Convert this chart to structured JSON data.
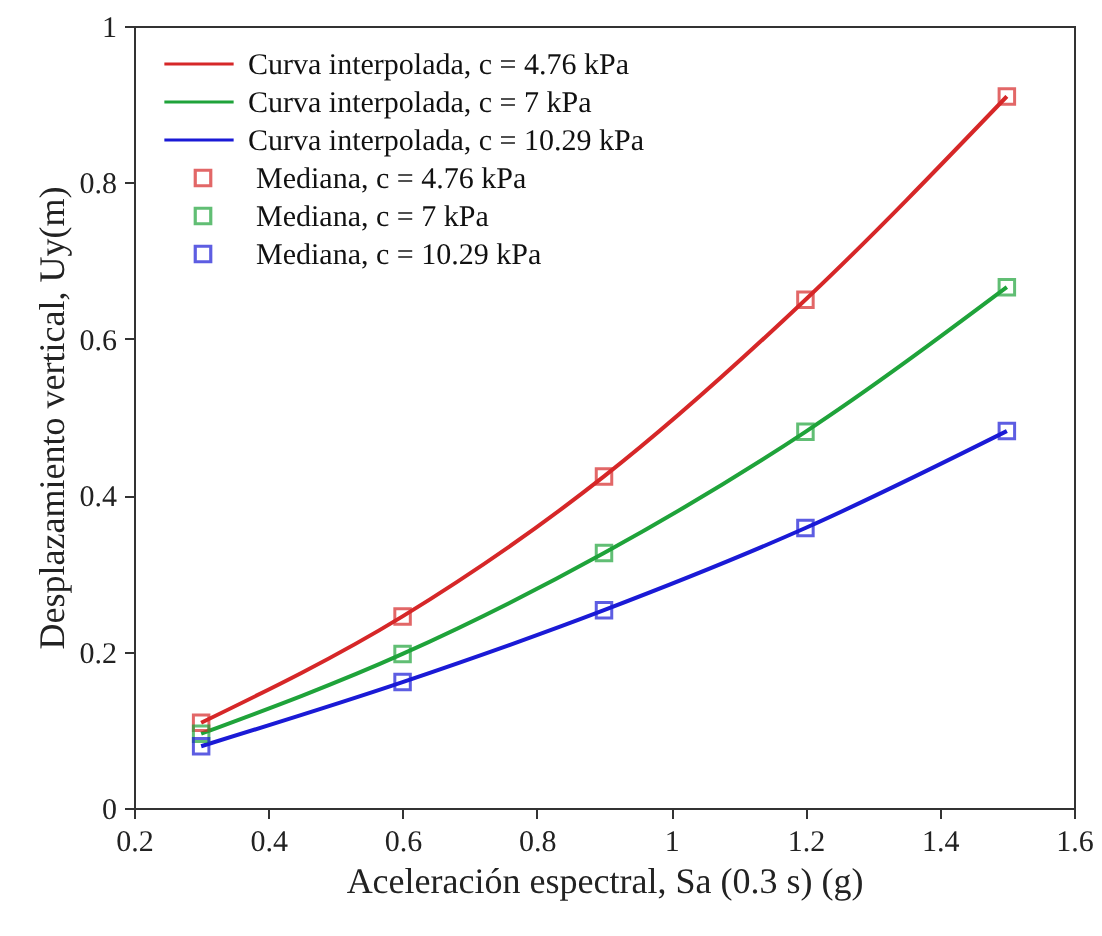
{
  "chart_data": {
    "type": "line",
    "xlabel": "Aceleración espectral, Sa (0.3 s) (g)",
    "ylabel": "Desplazamiento vertical, Uy(m)",
    "xlim": [
      0.2,
      1.6
    ],
    "xticks": [
      0.2,
      0.4,
      0.6,
      0.8,
      1,
      1.2,
      1.4,
      1.6
    ],
    "ylim": [
      0,
      1
    ],
    "yticks": [
      0,
      0.2,
      0.4,
      0.6,
      0.8,
      1
    ],
    "grid": false,
    "legend": "top left",
    "series": [
      {
        "name": "Curva interpolada, c = 4.76 kPa",
        "color": "#d62728",
        "x": [
          0.3,
          0.6,
          0.9,
          1.2,
          1.5
        ],
        "values": [
          0.109,
          0.245,
          0.424,
          0.65,
          0.91
        ]
      },
      {
        "name": "Curva interpolada, c = 7 kPa",
        "color": "#1fa33a",
        "x": [
          0.3,
          0.6,
          0.9,
          1.2,
          1.5
        ],
        "values": [
          0.095,
          0.197,
          0.326,
          0.481,
          0.666
        ]
      },
      {
        "name": "Curva interpolada, c = 10.29 kPa",
        "color": "#1a1ad6",
        "x": [
          0.3,
          0.6,
          0.9,
          1.2,
          1.5
        ],
        "values": [
          0.079,
          0.161,
          0.253,
          0.358,
          0.482
        ]
      },
      {
        "name": "Mediana, c = 4.76 kPa",
        "type": "scatter",
        "marker": "square",
        "color": "#d62728",
        "x": [
          0.3,
          0.6,
          0.9,
          1.2,
          1.5
        ],
        "values": [
          0.109,
          0.245,
          0.424,
          0.65,
          0.91
        ]
      },
      {
        "name": "Mediana, c = 7 kPa",
        "type": "scatter",
        "marker": "square",
        "color": "#1fa33a",
        "x": [
          0.3,
          0.6,
          0.9,
          1.2,
          1.5
        ],
        "values": [
          0.095,
          0.197,
          0.326,
          0.481,
          0.666
        ]
      },
      {
        "name": "Mediana, c = 10.29 kPa",
        "type": "scatter",
        "marker": "square",
        "color": "#1a1ad6",
        "x": [
          0.3,
          0.6,
          0.9,
          1.2,
          1.5
        ],
        "values": [
          0.079,
          0.161,
          0.253,
          0.358,
          0.482
        ]
      }
    ]
  }
}
